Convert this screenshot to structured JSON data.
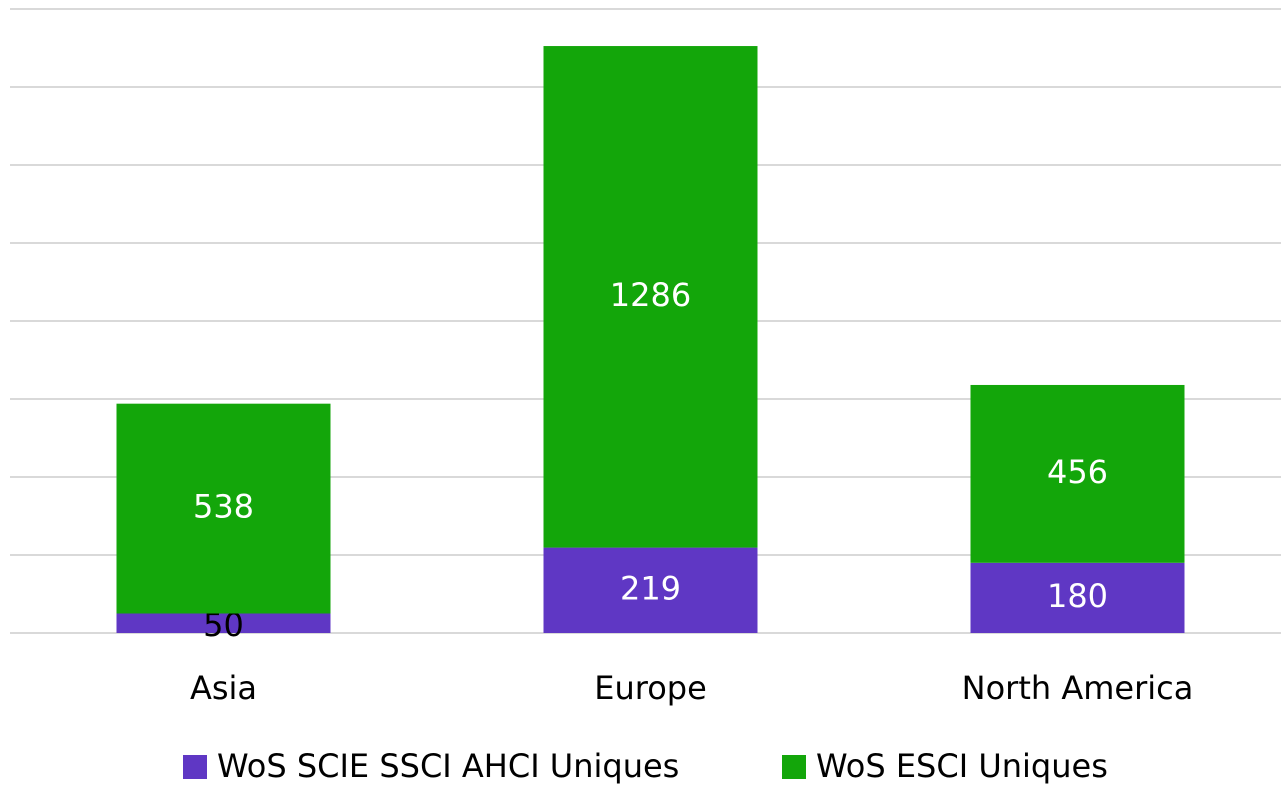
{
  "chart_data": {
    "type": "stacked_bar",
    "categories": [
      "Asia",
      "Europe",
      "North America"
    ],
    "series": [
      {
        "name": "WoS SCIE SSCI AHCI Uniques",
        "color": "#5f37c4",
        "values": [
          50,
          219,
          180
        ]
      },
      {
        "name": "WoS ESCI Uniques",
        "color": "#13a60a",
        "values": [
          538,
          1286,
          456
        ]
      }
    ],
    "ylim": [
      0,
      1600
    ],
    "yticks": [
      0,
      200,
      400,
      600,
      800,
      1000,
      1200,
      1400,
      1600
    ],
    "grid": true,
    "legend": "bottom"
  }
}
